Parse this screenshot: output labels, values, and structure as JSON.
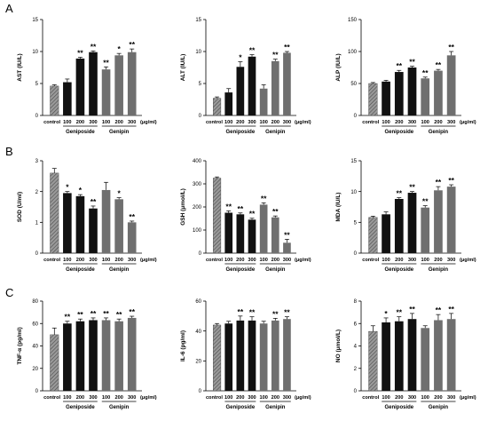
{
  "panel_letters": [
    "A",
    "B",
    "C"
  ],
  "unit_label": "(μg/ml)",
  "colors": {
    "control": "#8a8a8a",
    "geniposide": "#111111",
    "genipin": "#6f6f6f",
    "axis": "#000000"
  },
  "chart_data": [
    {
      "type": "bar",
      "panel": "A",
      "ylabel": "AST (IU/L)",
      "ylim": [
        0,
        15
      ],
      "yticks": [
        0,
        5,
        10,
        15
      ],
      "categories": [
        "control",
        "100",
        "200",
        "300",
        "100",
        "200",
        "300"
      ],
      "groups": [
        {
          "name": "Geniposide",
          "indices": [
            1,
            2,
            3
          ]
        },
        {
          "name": "Genipin",
          "indices": [
            4,
            5,
            6
          ]
        }
      ],
      "values": [
        4.6,
        5.2,
        8.9,
        9.9,
        7.2,
        9.4,
        9.9
      ],
      "errors": [
        0.2,
        0.5,
        0.2,
        0.2,
        0.4,
        0.3,
        0.5
      ],
      "annotations": [
        "",
        "",
        "**",
        "**",
        "**",
        "*",
        "**"
      ]
    },
    {
      "type": "bar",
      "panel": "A",
      "ylabel": "ALT (IU/L)",
      "ylim": [
        0,
        15
      ],
      "yticks": [
        0,
        5,
        10,
        15
      ],
      "categories": [
        "control",
        "100",
        "200",
        "300",
        "100",
        "200",
        "300"
      ],
      "groups": [
        {
          "name": "Geniposide",
          "indices": [
            1,
            2,
            3
          ]
        },
        {
          "name": "Genipin",
          "indices": [
            4,
            5,
            6
          ]
        }
      ],
      "values": [
        2.7,
        3.6,
        7.6,
        9.2,
        4.2,
        8.5,
        9.8
      ],
      "errors": [
        0.2,
        0.6,
        0.8,
        0.3,
        0.6,
        0.3,
        0.2
      ],
      "annotations": [
        "",
        "",
        "*",
        "**",
        "",
        "**",
        "**"
      ]
    },
    {
      "type": "bar",
      "panel": "A",
      "ylabel": "ALP (IU/L)",
      "ylim": [
        0,
        150
      ],
      "yticks": [
        0,
        50,
        100,
        150
      ],
      "categories": [
        "control",
        "100",
        "200",
        "300",
        "100",
        "200",
        "300"
      ],
      "groups": [
        {
          "name": "Geniposide",
          "indices": [
            1,
            2,
            3
          ]
        },
        {
          "name": "Genipin",
          "indices": [
            4,
            5,
            6
          ]
        }
      ],
      "values": [
        50,
        53,
        68,
        75,
        58,
        70,
        94
      ],
      "errors": [
        1.5,
        2,
        2.5,
        2,
        2,
        2,
        6
      ],
      "annotations": [
        "",
        "",
        "**",
        "**",
        "**",
        "**",
        "**"
      ]
    },
    {
      "type": "bar",
      "panel": "B",
      "ylabel": "SOD (U/ml)",
      "ylim": [
        0,
        3
      ],
      "yticks": [
        0,
        1,
        2,
        3
      ],
      "categories": [
        "control",
        "100",
        "200",
        "300",
        "100",
        "200",
        "300"
      ],
      "groups": [
        {
          "name": "Geniposide",
          "indices": [
            1,
            2,
            3
          ]
        },
        {
          "name": "Genipin",
          "indices": [
            4,
            5,
            6
          ]
        }
      ],
      "values": [
        2.6,
        1.95,
        1.85,
        1.45,
        2.05,
        1.75,
        1.0
      ],
      "errors": [
        0.15,
        0.05,
        0.05,
        0.08,
        0.25,
        0.05,
        0.04
      ],
      "annotations": [
        "",
        "*",
        "*",
        "**",
        "",
        "*",
        "**"
      ]
    },
    {
      "type": "bar",
      "panel": "B",
      "ylabel": "GSH (μmol/L)",
      "ylim": [
        0,
        400
      ],
      "yticks": [
        0,
        100,
        200,
        300,
        400
      ],
      "categories": [
        "control",
        "100",
        "200",
        "300",
        "100",
        "200",
        "300"
      ],
      "groups": [
        {
          "name": "Geniposide",
          "indices": [
            1,
            2,
            3
          ]
        },
        {
          "name": "Genipin",
          "indices": [
            4,
            5,
            6
          ]
        }
      ],
      "values": [
        325,
        175,
        168,
        145,
        210,
        155,
        45
      ],
      "errors": [
        5,
        8,
        6,
        6,
        8,
        6,
        15
      ],
      "annotations": [
        "",
        "**",
        "**",
        "**",
        "**",
        "**",
        "**"
      ]
    },
    {
      "type": "bar",
      "panel": "B",
      "ylabel": "MDA (IU/L)",
      "ylim": [
        0,
        15
      ],
      "yticks": [
        0,
        5,
        10,
        15
      ],
      "categories": [
        "control",
        "100",
        "200",
        "300",
        "100",
        "200",
        "300"
      ],
      "groups": [
        {
          "name": "Geniposide",
          "indices": [
            1,
            2,
            3
          ]
        },
        {
          "name": "Genipin",
          "indices": [
            4,
            5,
            6
          ]
        }
      ],
      "values": [
        5.8,
        6.3,
        8.8,
        9.8,
        7.4,
        10.2,
        10.8
      ],
      "errors": [
        0.2,
        0.4,
        0.2,
        0.2,
        0.3,
        0.6,
        0.3
      ],
      "annotations": [
        "",
        "",
        "**",
        "**",
        "**",
        "**",
        "**"
      ]
    },
    {
      "type": "bar",
      "panel": "C",
      "ylabel": "TNF-α (pg/ml)",
      "ylim": [
        0,
        80
      ],
      "yticks": [
        0,
        20,
        40,
        60,
        80
      ],
      "categories": [
        "control",
        "100",
        "200",
        "300",
        "100",
        "200",
        "300"
      ],
      "groups": [
        {
          "name": "Geniposide",
          "indices": [
            1,
            2,
            3
          ]
        },
        {
          "name": "Genipin",
          "indices": [
            4,
            5,
            6
          ]
        }
      ],
      "values": [
        50,
        60,
        62,
        63,
        63,
        62,
        65
      ],
      "errors": [
        6,
        2,
        2,
        2,
        2,
        2,
        1.5
      ],
      "annotations": [
        "",
        "**",
        "**",
        "**",
        "**",
        "**",
        "**"
      ]
    },
    {
      "type": "bar",
      "panel": "C",
      "ylabel": "IL-6 (pg/ml)",
      "ylim": [
        0,
        60
      ],
      "yticks": [
        0,
        20,
        40,
        60
      ],
      "categories": [
        "control",
        "100",
        "200",
        "300",
        "100",
        "200",
        "300"
      ],
      "groups": [
        {
          "name": "Geniposide",
          "indices": [
            1,
            2,
            3
          ]
        },
        {
          "name": "Genipin",
          "indices": [
            4,
            5,
            6
          ]
        }
      ],
      "values": [
        44,
        45,
        47,
        47,
        45,
        47,
        48
      ],
      "errors": [
        1,
        1.5,
        3,
        2.5,
        1.5,
        1.5,
        1.5
      ],
      "annotations": [
        "",
        "",
        "**",
        "**",
        "",
        "**",
        "**"
      ]
    },
    {
      "type": "bar",
      "panel": "C",
      "ylabel": "NO (μmol/L)",
      "ylim": [
        0,
        8
      ],
      "yticks": [
        0,
        2,
        4,
        6,
        8
      ],
      "categories": [
        "control",
        "100",
        "200",
        "300",
        "100",
        "200",
        "300"
      ],
      "groups": [
        {
          "name": "Geniposide",
          "indices": [
            1,
            2,
            3
          ]
        },
        {
          "name": "Genipin",
          "indices": [
            4,
            5,
            6
          ]
        }
      ],
      "values": [
        5.3,
        6.1,
        6.2,
        6.4,
        5.6,
        6.3,
        6.4
      ],
      "errors": [
        0.5,
        0.4,
        0.4,
        0.5,
        0.2,
        0.5,
        0.5
      ],
      "annotations": [
        "",
        "*",
        "**",
        "**",
        "",
        "**",
        "**"
      ]
    }
  ]
}
